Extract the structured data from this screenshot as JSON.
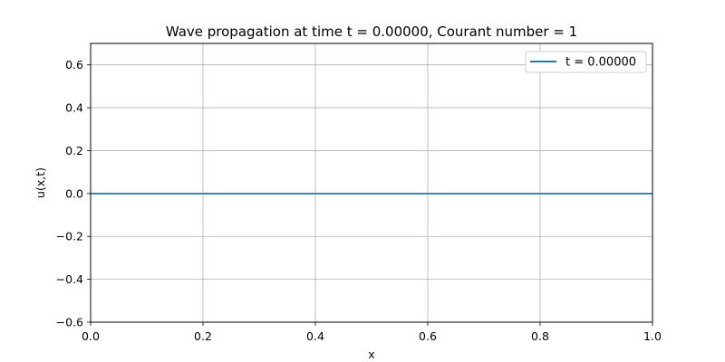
{
  "chart_data": {
    "type": "line",
    "title": "Wave propagation at time t = 0.00000, Courant number = 1",
    "xlabel": "x",
    "ylabel": "u(x,t)",
    "xlim": [
      0.0,
      1.0
    ],
    "ylim": [
      -0.6,
      0.7
    ],
    "xticks": [
      0.0,
      0.2,
      0.4,
      0.6,
      0.8,
      1.0
    ],
    "xtick_labels": [
      "0.0",
      "0.2",
      "0.4",
      "0.6",
      "0.8",
      "1.0"
    ],
    "yticks": [
      -0.6,
      -0.4,
      -0.2,
      0.0,
      0.2,
      0.4,
      0.6
    ],
    "ytick_labels": [
      "−0.6",
      "−0.4",
      "−0.2",
      "0.0",
      "0.2",
      "0.4",
      "0.6"
    ],
    "grid": true,
    "legend_position": "top-right",
    "series": [
      {
        "name": "t = 0.00000",
        "color": "#1f77b4",
        "x": [
          0.0,
          0.1,
          0.2,
          0.3,
          0.4,
          0.5,
          0.6,
          0.7,
          0.8,
          0.9,
          1.0
        ],
        "y": [
          0.0,
          0.0,
          0.0,
          0.0,
          0.0,
          0.0,
          0.0,
          0.0,
          0.0,
          0.0,
          0.0
        ]
      }
    ]
  }
}
